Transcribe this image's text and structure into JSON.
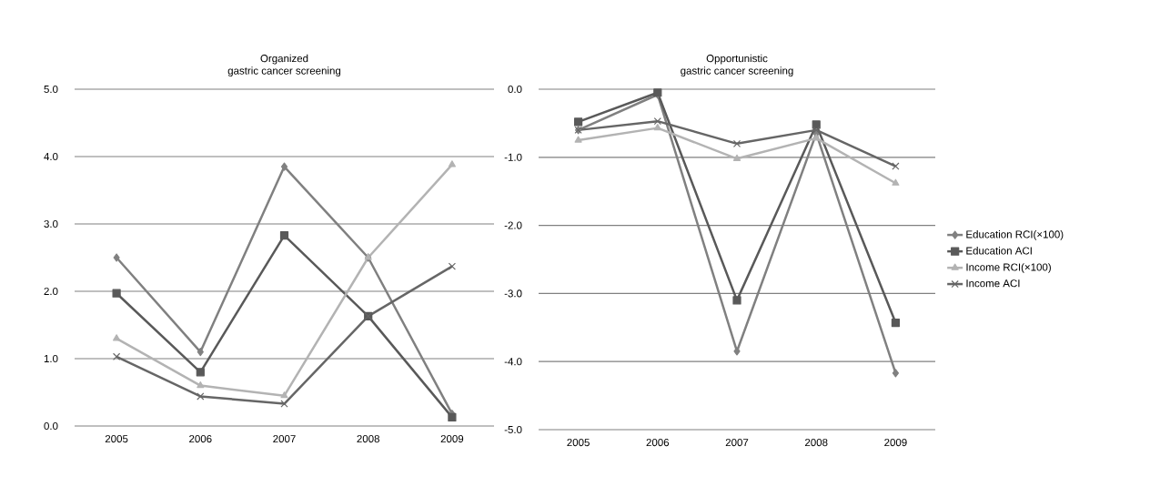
{
  "chart_data": [
    {
      "type": "line",
      "title": "Organized",
      "subtitle": "gastric cancer screening",
      "categories": [
        "2005",
        "2006",
        "2007",
        "2008",
        "2009"
      ],
      "series": [
        {
          "color": "#808080",
          "marker": "diamond",
          "values": [
            2.5,
            1.1,
            3.85,
            2.5,
            0.18
          ]
        },
        {
          "color": "#595959",
          "marker": "square",
          "values": [
            1.97,
            0.8,
            2.83,
            1.63,
            0.13
          ]
        },
        {
          "color": "#b3b3b3",
          "marker": "triangle",
          "values": [
            1.3,
            0.6,
            0.45,
            2.5,
            3.88
          ]
        },
        {
          "color": "#666666",
          "marker": "cross",
          "values": [
            1.03,
            0.44,
            0.33,
            1.63,
            2.37
          ]
        }
      ],
      "ylim": [
        0,
        5
      ],
      "yticks": [
        {
          "value": 0,
          "label": "0.0"
        },
        {
          "value": 1,
          "label": "1.0"
        },
        {
          "value": 2,
          "label": "2.0"
        },
        {
          "value": 3,
          "label": "3.0"
        },
        {
          "value": 4,
          "label": "4.0"
        },
        {
          "value": 5,
          "label": "5.0"
        }
      ],
      "grid": "y",
      "legend": false
    },
    {
      "type": "line",
      "title": "Opportunistic",
      "subtitle": "gastric cancer screening",
      "categories": [
        "2005",
        "2006",
        "2007",
        "2008",
        "2009"
      ],
      "series": [
        {
          "name": "Education RCI(×100)",
          "color": "#808080",
          "marker": "diamond",
          "values": [
            -0.6,
            -0.08,
            -3.85,
            -0.65,
            -4.17
          ]
        },
        {
          "name": "Education ACI",
          "color": "#595959",
          "marker": "square",
          "values": [
            -0.48,
            -0.05,
            -3.1,
            -0.52,
            -3.43
          ]
        },
        {
          "name": "Income RCI(×100)",
          "color": "#b3b3b3",
          "marker": "triangle",
          "values": [
            -0.75,
            -0.57,
            -1.02,
            -0.72,
            -1.38
          ]
        },
        {
          "name": "Income ACI",
          "color": "#666666",
          "marker": "cross",
          "values": [
            -0.6,
            -0.47,
            -0.8,
            -0.6,
            -1.13
          ]
        }
      ],
      "ylim": [
        -5,
        0
      ],
      "yticks": [
        {
          "value": -5,
          "label": "-5.0"
        },
        {
          "value": -4,
          "label": "-4.0"
        },
        {
          "value": -3,
          "label": "-3.0"
        },
        {
          "value": -2,
          "label": "-2.0"
        },
        {
          "value": -1,
          "label": "-1.0"
        },
        {
          "value": 0,
          "label": "0.0"
        }
      ],
      "grid": "y",
      "legend": "right"
    }
  ]
}
